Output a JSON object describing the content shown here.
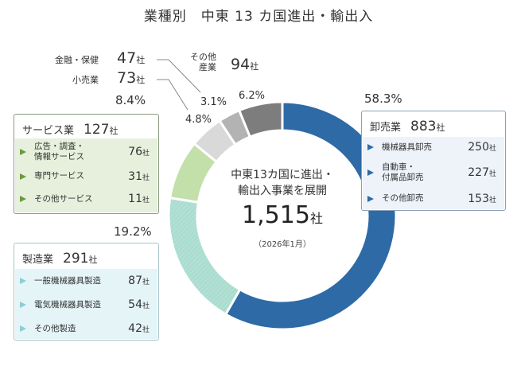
{
  "title": {
    "part1": "業種別",
    "part2": "中東 13 カ国進出・輸出入"
  },
  "center": {
    "line1": "中東13カ国に進出・",
    "line2": "輸出入事業を展開",
    "total": "1,515",
    "total_unit": "社",
    "date": "（2026年1月）"
  },
  "unit": "社",
  "labels": {
    "finance": {
      "name": "金融・保健",
      "count": "47"
    },
    "retail": {
      "name": "小売業",
      "count": "73"
    },
    "other": {
      "name_line1": "その他",
      "name_line2": "産業",
      "count": "94"
    }
  },
  "boxes": {
    "wholesale": {
      "name": "卸売業",
      "count": "883",
      "items": [
        {
          "label": "機械器具卸売",
          "value": "250"
        },
        {
          "label": "自動車・\n付属品卸売",
          "value": "227"
        },
        {
          "label": "その他卸売",
          "value": "153"
        }
      ]
    },
    "services": {
      "name": "サービス業",
      "count": "127",
      "items": [
        {
          "label": "広告・調査・\n情報サービス",
          "value": "76"
        },
        {
          "label": "専門サービス",
          "value": "31"
        },
        {
          "label": "その他サービス",
          "value": "11"
        }
      ]
    },
    "manufacturing": {
      "name": "製造業",
      "count": "291",
      "items": [
        {
          "label": "一般機械器具製造",
          "value": "87"
        },
        {
          "label": "電気機械器具製造",
          "value": "54"
        },
        {
          "label": "その他製造",
          "value": "42"
        }
      ]
    }
  },
  "colors": {
    "wholesale": "#2e6aa6",
    "manufacturing": "#aadccf",
    "services": "#c3dfaa",
    "retail": "#d9d9d9",
    "finance": "#b3b3b3",
    "other": "#7d7d7d",
    "services_box_border": "#8a9a7e",
    "services_box_body": "#e6f0dc",
    "services_tri": "#6a9a3c",
    "wholesale_box_border": "#8aa0b8",
    "wholesale_box_body": "#eef3fa",
    "wholesale_tri": "#2e6aa6",
    "manufacturing_box_border": "#a9c4cc",
    "manufacturing_box_body": "#e4f4f7",
    "manufacturing_tri": "#8fcbd8"
  },
  "chart_data": {
    "type": "pie",
    "title": "業種別 中東 13 カ国進出・輸出入",
    "donut": true,
    "center_text": "中東13カ国に進出・輸出入事業を展開 1,515社 （2026年1月）",
    "total": 1515,
    "categories": [
      "卸売業",
      "製造業",
      "サービス業",
      "小売業",
      "金融・保健",
      "その他産業"
    ],
    "values": [
      883,
      291,
      127,
      73,
      47,
      94
    ],
    "percentages": [
      58.3,
      19.2,
      8.4,
      4.8,
      3.1,
      6.2
    ],
    "percent_labels": [
      "58.3%",
      "19.2%",
      "8.4%",
      "4.8%",
      "3.1%",
      "6.2%"
    ],
    "slice_keys": [
      "wholesale",
      "manufacturing",
      "services",
      "retail",
      "finance",
      "other"
    ],
    "start_angle": "top, clockwise",
    "breakdowns": {
      "卸売業": {
        "機械器具卸売": 250,
        "自動車・付属品卸売": 227,
        "その他卸売": 153
      },
      "サービス業": {
        "広告・調査・情報サービス": 76,
        "専門サービス": 31,
        "その他サービス": 11
      },
      "製造業": {
        "一般機械器具製造": 87,
        "電気機械器具製造": 54,
        "その他製造": 42
      }
    }
  }
}
